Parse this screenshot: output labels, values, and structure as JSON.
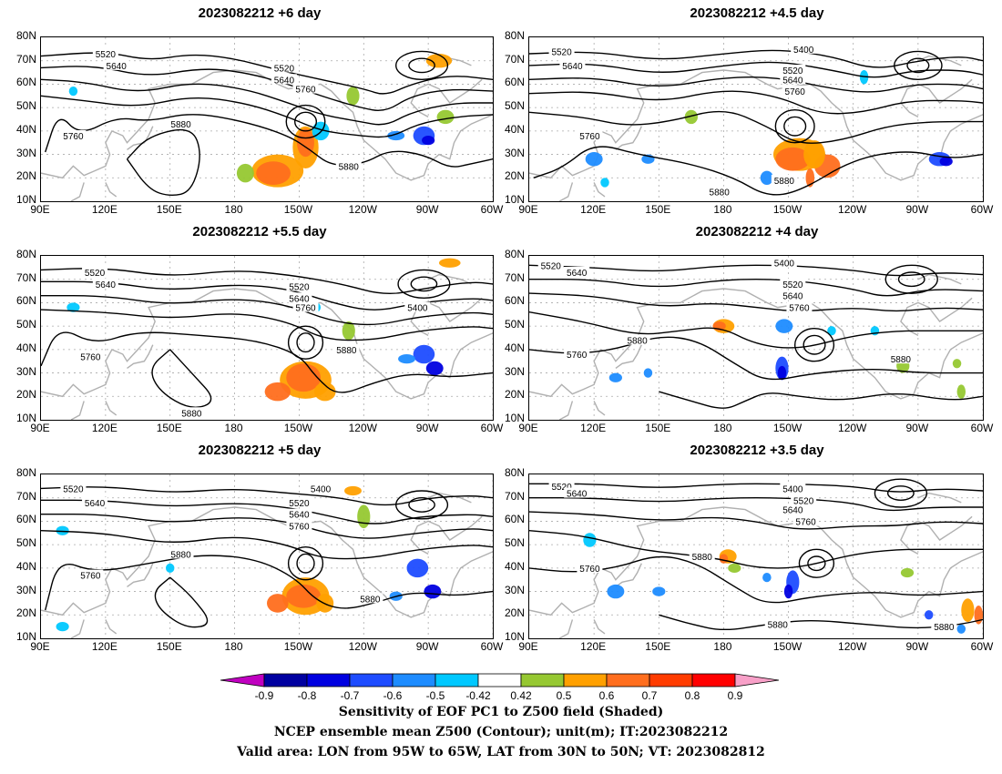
{
  "panels": [
    {
      "title": "2023082212  +6 day",
      "contour_labels": [
        "5520",
        "5640",
        "5520",
        "5640",
        "5760",
        "5880",
        "5760",
        "5880"
      ]
    },
    {
      "title": "2023082212  +4.5 day",
      "contour_labels": [
        "5520",
        "5640",
        "5400",
        "5520",
        "5640",
        "5760",
        "5760",
        "5880",
        "5880"
      ]
    },
    {
      "title": "2023082212  +5.5 day",
      "contour_labels": [
        "5520",
        "5640",
        "5520",
        "5640",
        "5760",
        "5400",
        "5760",
        "5880",
        "5880"
      ]
    },
    {
      "title": "2023082212  +4 day",
      "contour_labels": [
        "5520",
        "5640",
        "5400",
        "5520",
        "5640",
        "5760",
        "5880",
        "5760",
        "5880"
      ]
    },
    {
      "title": "2023082212  +5 day",
      "contour_labels": [
        "5520",
        "5640",
        "5400",
        "5520",
        "5640",
        "5760",
        "5880",
        "5760",
        "5880"
      ]
    },
    {
      "title": "2023082212  +3.5 day",
      "contour_labels": [
        "5520",
        "5640",
        "5400",
        "5520",
        "5640",
        "5760",
        "5880",
        "5760",
        "5880",
        "5880"
      ]
    }
  ],
  "lat_labels": [
    "80N",
    "70N",
    "60N",
    "50N",
    "40N",
    "30N",
    "20N",
    "10N"
  ],
  "lon_labels": [
    "90E",
    "120E",
    "150E",
    "180",
    "150W",
    "120W",
    "90W",
    "60W"
  ],
  "colorbar": {
    "labels": [
      "-0.9",
      "-0.8",
      "-0.7",
      "-0.6",
      "-0.5",
      "-0.42",
      "0.42",
      "0.5",
      "0.6",
      "0.7",
      "0.8",
      "0.9"
    ],
    "colors": [
      "#c000c0",
      "#0000a0",
      "#0000e0",
      "#1e4cff",
      "#1e8cff",
      "#00c8ff",
      "#ffffff",
      "#96c832",
      "#ffa000",
      "#ff6e1e",
      "#ff3c00",
      "#ff0000",
      "#f8a0c8"
    ]
  },
  "captions": [
    "Sensitivity of EOF PC1 to Z500 field (Shaded)",
    "NCEP ensemble mean Z500 (Contour); unit(m); IT:2023082212",
    "Valid area: LON from 95W to 65W, LAT from 30N to 50N; VT: 2023082812"
  ]
}
